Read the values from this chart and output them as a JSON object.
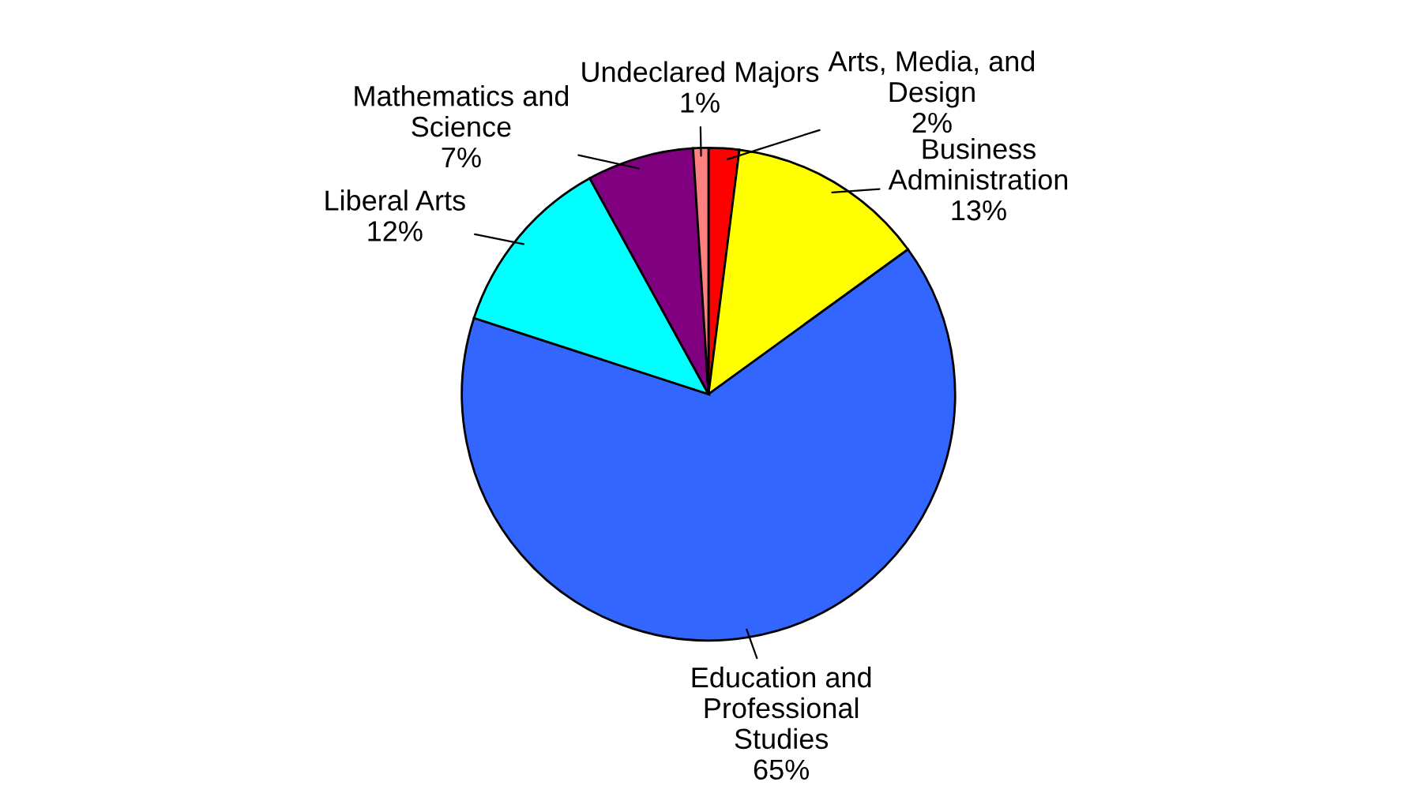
{
  "chart_data": {
    "type": "pie",
    "categories": [
      "Arts, Media, and Design",
      "Business Administration",
      "Education and Professional Studies",
      "Liberal Arts",
      "Mathematics and Science",
      "Undeclared Majors"
    ],
    "values": [
      2,
      13,
      65,
      12,
      7,
      1
    ],
    "colors": [
      "#ff0000",
      "#ffff00",
      "#3366ff",
      "#00ffff",
      "#800080",
      "#ff8080"
    ],
    "value_labels": [
      "2%",
      "13%",
      "65%",
      "12%",
      "7%",
      "1%"
    ],
    "legend": false
  }
}
